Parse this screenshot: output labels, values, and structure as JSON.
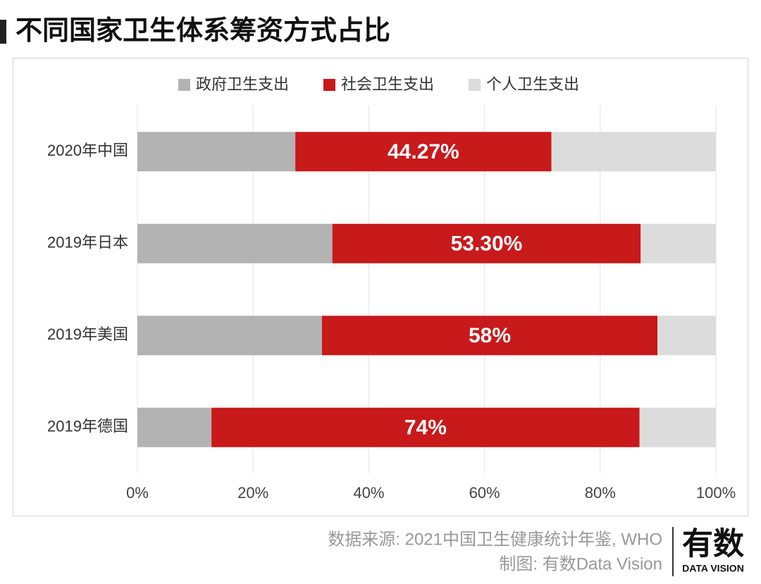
{
  "chart_data": {
    "type": "stacked-barh",
    "title": "不同国家卫生体系筹资方式占比",
    "categories": [
      "2020年中国",
      "2019年日本",
      "2019年美国",
      "2019年德国"
    ],
    "series": [
      {
        "name": "政府卫生支出",
        "color": "#b3b3b3",
        "values": [
          27.3,
          33.7,
          31.9,
          12.8
        ]
      },
      {
        "name": "社会卫生支出",
        "color": "#c8191b",
        "values": [
          44.27,
          53.3,
          58,
          74
        ],
        "value_labels": [
          "44.27%",
          "53.30%",
          "58%",
          "74%"
        ]
      },
      {
        "name": "个人卫生支出",
        "color": "#dcdcdc",
        "values": [
          28.43,
          13.0,
          10.1,
          13.2
        ]
      }
    ],
    "xlim": [
      0,
      100
    ],
    "xticks": [
      {
        "value": 0,
        "label": "0%"
      },
      {
        "value": 20,
        "label": "20%"
      },
      {
        "value": 40,
        "label": "40%"
      },
      {
        "value": 60,
        "label": "60%"
      },
      {
        "value": 80,
        "label": "80%"
      },
      {
        "value": 100,
        "label": "100%"
      }
    ],
    "grid": true,
    "legend": "top",
    "source": "数据来源: 2021中国卫生健康统计年鉴, WHO",
    "credit": "制图: 有数Data Vision",
    "logo": "有数",
    "logo_sub": "DATA VISION"
  }
}
